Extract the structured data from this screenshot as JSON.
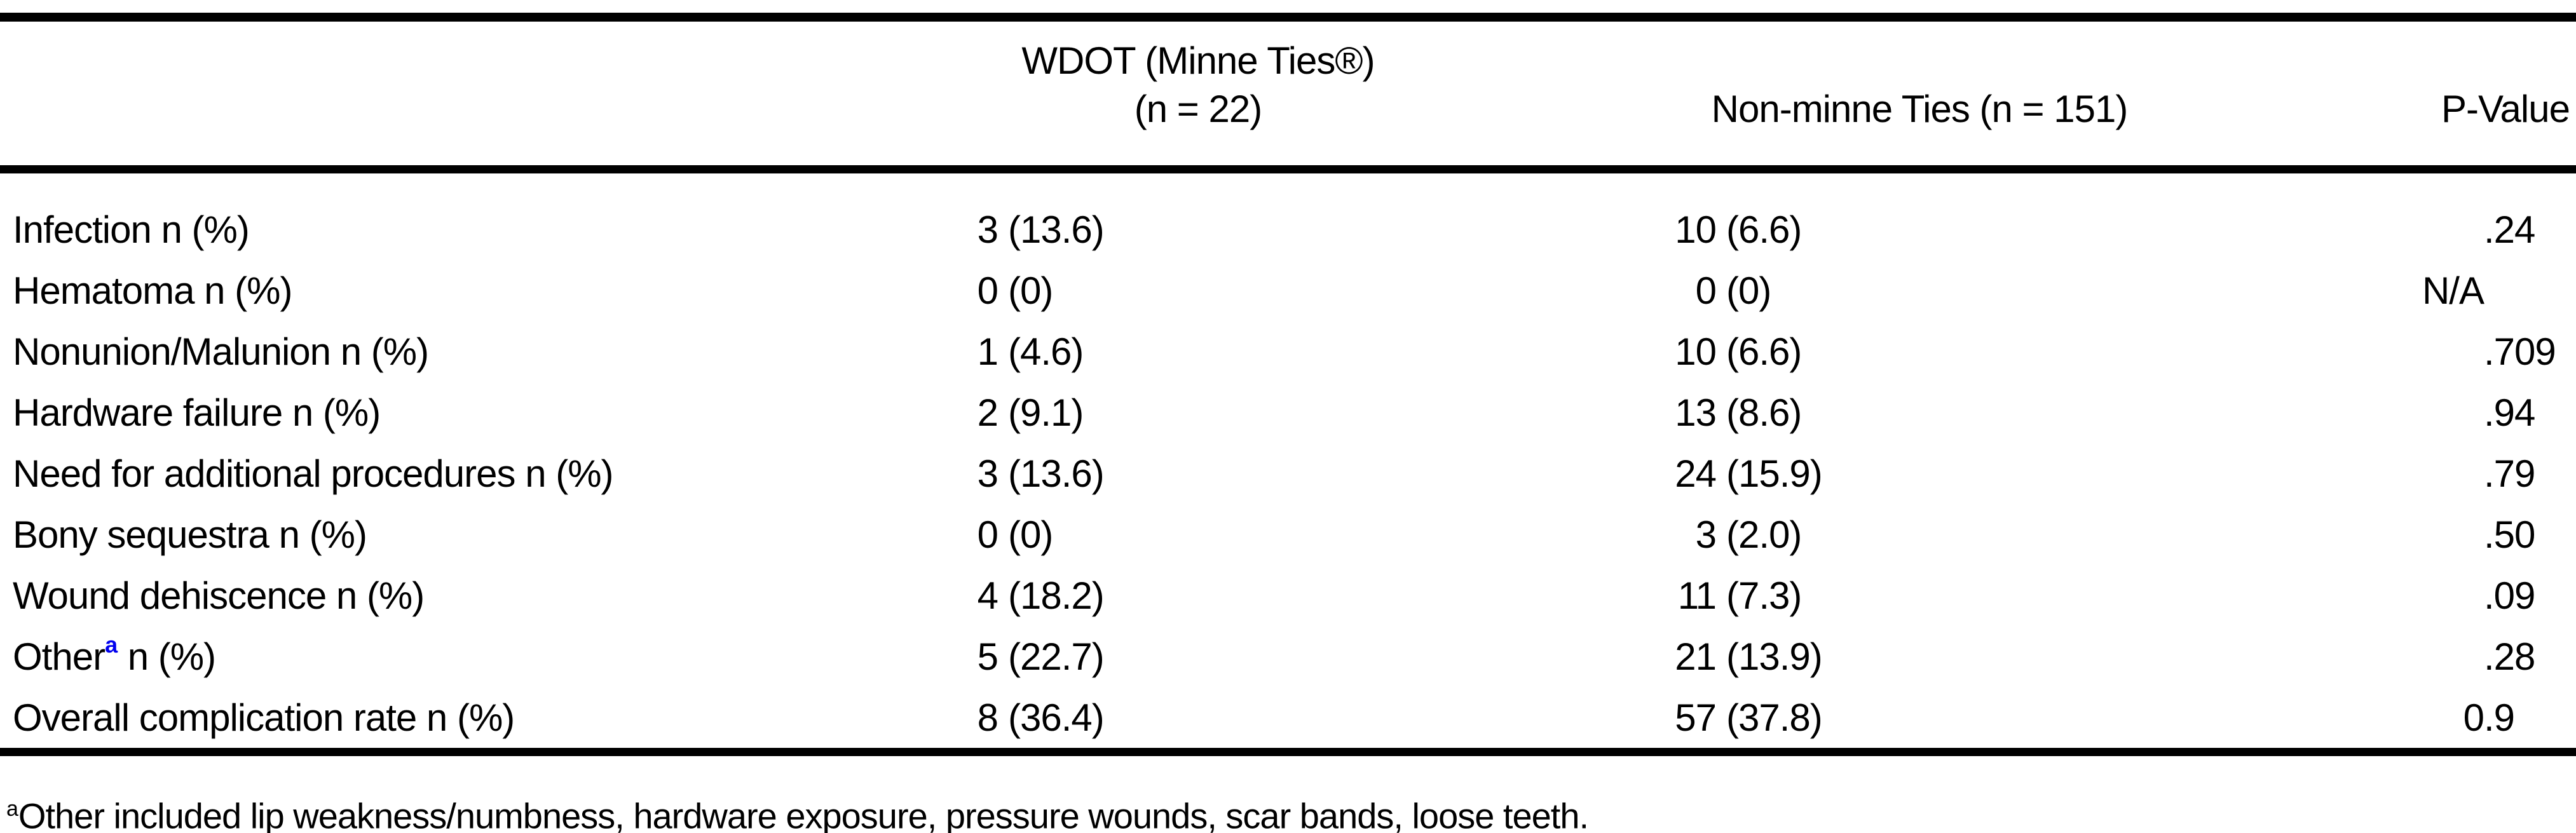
{
  "colors": {
    "text": "#000000",
    "background": "#ffffff",
    "rule": "#000000",
    "footnote_link_blue": "#0000ee"
  },
  "table": {
    "header": {
      "wdot_line1": "WDOT (Minne Ties®)",
      "wdot_line2": "(n = 22)",
      "non_minne": "Non-minne Ties (n = 151)",
      "p_value": "P-Value"
    },
    "rows": [
      {
        "label": {
          "pre": "Infection n (%)",
          "sup": "",
          "post": ""
        },
        "wdot": {
          "n": "3",
          "pct": "(13.6)"
        },
        "non_minne": {
          "n": "10",
          "pct": "(6.6)"
        },
        "p": ".24"
      },
      {
        "label": {
          "pre": "Hematoma n (%)",
          "sup": "",
          "post": ""
        },
        "wdot": {
          "n": "0",
          "pct": "(0)"
        },
        "non_minne": {
          "n": "0",
          "pct": "(0)"
        },
        "p": "N/A"
      },
      {
        "label": {
          "pre": "Nonunion/Malunion n (%)",
          "sup": "",
          "post": ""
        },
        "wdot": {
          "n": "1",
          "pct": "(4.6)"
        },
        "non_minne": {
          "n": "10",
          "pct": "(6.6)"
        },
        "p": ".709"
      },
      {
        "label": {
          "pre": "Hardware failure n (%)",
          "sup": "",
          "post": ""
        },
        "wdot": {
          "n": "2",
          "pct": "(9.1)"
        },
        "non_minne": {
          "n": "13",
          "pct": "(8.6)"
        },
        "p": ".94"
      },
      {
        "label": {
          "pre": "Need for additional procedures n (%)",
          "sup": "",
          "post": ""
        },
        "wdot": {
          "n": "3",
          "pct": "(13.6)"
        },
        "non_minne": {
          "n": "24",
          "pct": "(15.9)"
        },
        "p": ".79"
      },
      {
        "label": {
          "pre": "Bony sequestra n (%)",
          "sup": "",
          "post": ""
        },
        "wdot": {
          "n": "0",
          "pct": "(0)"
        },
        "non_minne": {
          "n": "3",
          "pct": "(2.0)"
        },
        "p": ".50"
      },
      {
        "label": {
          "pre": "Wound dehiscence n (%)",
          "sup": "",
          "post": ""
        },
        "wdot": {
          "n": "4",
          "pct": "(18.2)"
        },
        "non_minne": {
          "n": "11",
          "pct": "(7.3)"
        },
        "p": ".09"
      },
      {
        "label": {
          "pre": "Other",
          "sup": "a",
          "post": " n (%)"
        },
        "wdot": {
          "n": "5",
          "pct": "(22.7)"
        },
        "non_minne": {
          "n": "21",
          "pct": "(13.9)"
        },
        "p": ".28"
      },
      {
        "label": {
          "pre": "Overall complication rate n (%)",
          "sup": "",
          "post": ""
        },
        "wdot": {
          "n": "8",
          "pct": "(36.4)"
        },
        "non_minne": {
          "n": "57",
          "pct": "(37.8)"
        },
        "p": "0.9"
      }
    ],
    "footnote": {
      "marker": "a",
      "text": "Other included lip weakness/numbness, hardware exposure, pressure wounds, scar bands, loose teeth."
    }
  }
}
